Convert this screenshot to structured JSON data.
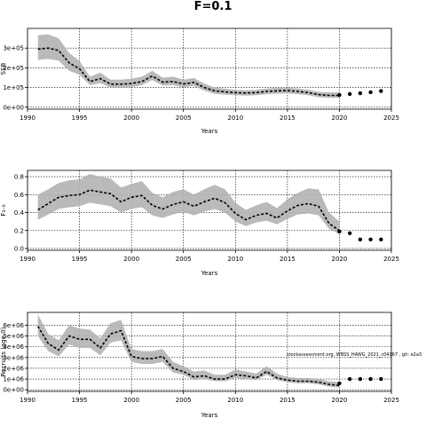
{
  "figure": {
    "title": "F=0.1"
  },
  "chart_data": [
    {
      "type": "line",
      "ylabel": "SSB",
      "xlabel": "Years",
      "xlim": [
        1990,
        2025
      ],
      "ylim": [
        -10000,
        400000
      ],
      "xticks": [
        1990,
        1995,
        2000,
        2005,
        2010,
        2015,
        2020,
        2025
      ],
      "xtick_labels": [
        "1990",
        "1995",
        "2000",
        "2005",
        "2010",
        "2015",
        "2020",
        "2025"
      ],
      "yticks": [
        0,
        100000,
        200000,
        300000
      ],
      "ytick_labels": [
        "0e+00",
        "1e+05",
        "2e+05",
        "3e+05"
      ],
      "grid": true,
      "series": [
        {
          "role": "historical-median",
          "x": [
            1991,
            1992,
            1993,
            1994,
            1995,
            1996,
            1997,
            1998,
            1999,
            2000,
            2001,
            2002,
            2003,
            2004,
            2005,
            2006,
            2007,
            2008,
            2009,
            2010,
            2011,
            2012,
            2013,
            2014,
            2015,
            2016,
            2017,
            2018,
            2019,
            2020
          ],
          "y": [
            295000,
            300000,
            288000,
            225000,
            195000,
            130000,
            145000,
            117000,
            117000,
            120000,
            130000,
            158000,
            127000,
            130000,
            118000,
            126000,
            100000,
            83000,
            78000,
            74000,
            72000,
            74000,
            80000,
            83000,
            84000,
            80000,
            74000,
            64000,
            60000,
            60000
          ],
          "lower": [
            240000,
            245000,
            236000,
            185000,
            165000,
            112000,
            122000,
            100000,
            100000,
            102000,
            112000,
            138000,
            110000,
            112000,
            101000,
            108000,
            84000,
            68000,
            64000,
            61000,
            59000,
            61000,
            66000,
            69000,
            70000,
            66000,
            61000,
            51000,
            47000,
            47000
          ],
          "upper": [
            365000,
            370000,
            350000,
            275000,
            235000,
            155000,
            175000,
            140000,
            140000,
            145000,
            155000,
            185000,
            150000,
            155000,
            140000,
            148000,
            120000,
            100000,
            94000,
            88000,
            86000,
            88000,
            95000,
            98000,
            99000,
            95000,
            88000,
            78000,
            75000,
            75000
          ]
        },
        {
          "role": "projection",
          "x": [
            2020,
            2021,
            2022,
            2023,
            2024
          ],
          "y": [
            62000,
            67000,
            71000,
            76000,
            82000
          ]
        }
      ]
    },
    {
      "type": "line",
      "ylabel": "F₃₋₆",
      "xlabel": "Years",
      "xlim": [
        1990,
        2025
      ],
      "ylim": [
        -0.02,
        0.87
      ],
      "xticks": [
        1990,
        1995,
        2000,
        2005,
        2010,
        2015,
        2020,
        2025
      ],
      "xtick_labels": [
        "1990",
        "1995",
        "2000",
        "2005",
        "2010",
        "2015",
        "2020",
        "2025"
      ],
      "yticks": [
        0,
        0.2,
        0.4,
        0.6,
        0.8
      ],
      "ytick_labels": [
        "0.0",
        "0.2",
        "0.4",
        "0.6",
        "0.8"
      ],
      "grid": true,
      "series": [
        {
          "role": "historical-median",
          "x": [
            1991,
            1992,
            1993,
            1994,
            1995,
            1996,
            1997,
            1998,
            1999,
            2000,
            2001,
            2002,
            2003,
            2004,
            2005,
            2006,
            2007,
            2008,
            2009,
            2010,
            2011,
            2012,
            2013,
            2014,
            2015,
            2016,
            2017,
            2018,
            2019,
            2020
          ],
          "y": [
            0.43,
            0.5,
            0.57,
            0.59,
            0.6,
            0.65,
            0.63,
            0.61,
            0.52,
            0.57,
            0.59,
            0.48,
            0.44,
            0.49,
            0.52,
            0.47,
            0.52,
            0.56,
            0.51,
            0.39,
            0.32,
            0.37,
            0.39,
            0.34,
            0.42,
            0.48,
            0.5,
            0.47,
            0.28,
            0.2
          ],
          "lower": [
            0.32,
            0.38,
            0.44,
            0.46,
            0.47,
            0.51,
            0.49,
            0.47,
            0.4,
            0.44,
            0.46,
            0.37,
            0.34,
            0.38,
            0.41,
            0.37,
            0.41,
            0.44,
            0.4,
            0.3,
            0.25,
            0.29,
            0.31,
            0.27,
            0.33,
            0.38,
            0.39,
            0.37,
            0.22,
            0.16
          ],
          "upper": [
            0.6,
            0.66,
            0.73,
            0.76,
            0.77,
            0.83,
            0.8,
            0.78,
            0.68,
            0.72,
            0.75,
            0.62,
            0.57,
            0.63,
            0.66,
            0.6,
            0.66,
            0.71,
            0.66,
            0.51,
            0.43,
            0.48,
            0.52,
            0.45,
            0.55,
            0.62,
            0.67,
            0.66,
            0.4,
            0.3
          ]
        },
        {
          "role": "projection",
          "x": [
            2020,
            2021,
            2022,
            2023,
            2024
          ],
          "y": [
            0.19,
            0.17,
            0.1,
            0.1,
            0.1
          ]
        }
      ]
    },
    {
      "type": "line",
      "ylabel": "Recruits (age 0)",
      "xlabel": "Years",
      "xlim": [
        1990,
        2025
      ],
      "ylim": [
        -150000,
        7200000
      ],
      "xticks": [
        1990,
        1995,
        2000,
        2005,
        2010,
        2015,
        2020,
        2025
      ],
      "xtick_labels": [
        "1990",
        "1995",
        "2000",
        "2005",
        "2010",
        "2015",
        "2020",
        "2025"
      ],
      "yticks": [
        0,
        1000000,
        2000000,
        3000000,
        4000000,
        5000000,
        6000000
      ],
      "ytick_labels": [
        "0e+00",
        "1e+06",
        "2e+06",
        "3e+06",
        "4e+06",
        "5e+06",
        "6e+06"
      ],
      "grid": true,
      "annotation": "stockassessment.org, WBSS_HAWG_2021_c04167 , git: e2a3",
      "series": [
        {
          "role": "historical-median",
          "x": [
            1991,
            1992,
            1993,
            1994,
            1995,
            1996,
            1997,
            1998,
            1999,
            2000,
            2001,
            2002,
            2003,
            2004,
            2005,
            2006,
            2007,
            2008,
            2009,
            2010,
            2011,
            2012,
            2013,
            2014,
            2015,
            2016,
            2017,
            2018,
            2019,
            2020
          ],
          "y": [
            5900000,
            4300000,
            3700000,
            5000000,
            4700000,
            4700000,
            3900000,
            5200000,
            5500000,
            3100000,
            2900000,
            2900000,
            3100000,
            2000000,
            1700000,
            1200000,
            1300000,
            1000000,
            1000000,
            1400000,
            1300000,
            1100000,
            1700000,
            1100000,
            900000,
            800000,
            800000,
            700000,
            500000,
            400000
          ],
          "lower": [
            5000000,
            3600000,
            3100000,
            4200000,
            3900000,
            3900000,
            3200000,
            4400000,
            4600000,
            2600000,
            2400000,
            2400000,
            2600000,
            1600000,
            1400000,
            900000,
            1000000,
            800000,
            800000,
            1100000,
            1000000,
            900000,
            1400000,
            900000,
            700000,
            600000,
            600000,
            500000,
            300000,
            200000
          ],
          "upper": [
            7000000,
            5200000,
            4600000,
            6000000,
            5700000,
            5600000,
            4800000,
            6200000,
            6500000,
            3800000,
            3600000,
            3600000,
            3800000,
            2600000,
            2200000,
            1700000,
            1800000,
            1400000,
            1400000,
            1900000,
            1700000,
            1500000,
            2200000,
            1500000,
            1200000,
            1100000,
            1100000,
            1000000,
            800000,
            700000
          ]
        },
        {
          "role": "projection",
          "x": [
            2020,
            2021,
            2022,
            2023,
            2024
          ],
          "y": [
            600000,
            1000000,
            1000000,
            1000000,
            1000000
          ]
        }
      ]
    }
  ]
}
